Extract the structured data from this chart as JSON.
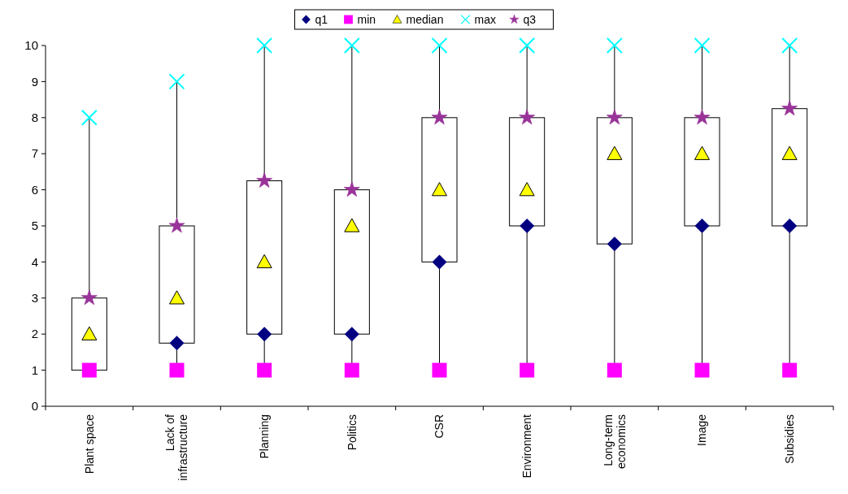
{
  "chart_data": {
    "type": "box",
    "categories": [
      "Plant space",
      "Lack of infrastructure",
      "Planning",
      "Politics",
      "CSR",
      "Environment",
      "Long-term economics",
      "Image",
      "Subsidies"
    ],
    "boxes": [
      {
        "low": 1,
        "q1": 1,
        "q3": 3,
        "high": 8
      },
      {
        "low": 1,
        "q1": 1.75,
        "q3": 5,
        "high": 9
      },
      {
        "low": 1,
        "q1": 2,
        "q3": 6.25,
        "high": 10
      },
      {
        "low": 1,
        "q1": 2,
        "q3": 6,
        "high": 10
      },
      {
        "low": 1,
        "q1": 4,
        "q3": 8,
        "high": 10
      },
      {
        "low": 1,
        "q1": 5,
        "q3": 8,
        "high": 10
      },
      {
        "low": 1,
        "q1": 4.5,
        "q3": 8,
        "high": 10
      },
      {
        "low": 1,
        "q1": 5,
        "q3": 8,
        "high": 10
      },
      {
        "low": 1,
        "q1": 5,
        "q3": 8.25,
        "high": 10
      }
    ],
    "series": [
      {
        "name": "q1",
        "type": "scatter",
        "marker": "diamond",
        "color": "#000080",
        "values": [
          null,
          1.75,
          2,
          2,
          4,
          5,
          4.5,
          5,
          5
        ]
      },
      {
        "name": "min",
        "type": "scatter",
        "marker": "square",
        "color": "#ff00ff",
        "values": [
          1,
          1,
          1,
          1,
          1,
          1,
          1,
          1,
          1
        ]
      },
      {
        "name": "median",
        "type": "scatter",
        "marker": "triangle",
        "color": "#ffff00",
        "values": [
          2,
          3,
          4,
          5,
          6,
          6,
          7,
          7,
          7
        ]
      },
      {
        "name": "max",
        "type": "scatter",
        "marker": "cross",
        "color": "#00ffff",
        "values": [
          8,
          9,
          10,
          10,
          10,
          10,
          10,
          10,
          10
        ]
      },
      {
        "name": "q3",
        "type": "scatter",
        "marker": "star",
        "color": "#993399",
        "values": [
          3,
          5,
          6.25,
          6,
          8,
          8,
          8,
          8,
          8.25
        ]
      }
    ],
    "ylim": [
      0,
      10
    ],
    "yticks": [
      0,
      1,
      2,
      3,
      4,
      5,
      6,
      7,
      8,
      9,
      10
    ],
    "grid": false,
    "legend": "top"
  }
}
